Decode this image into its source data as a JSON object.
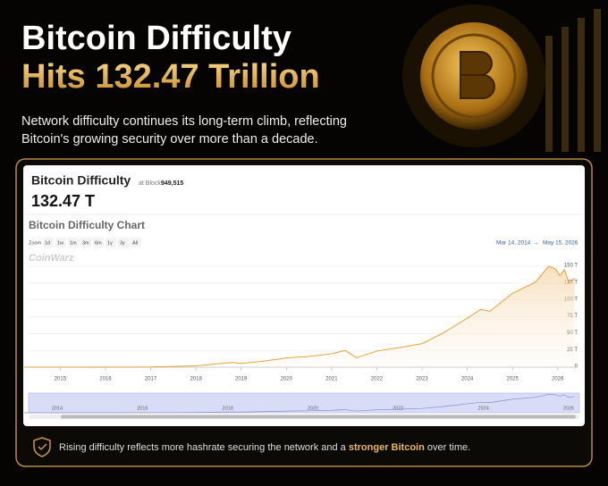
{
  "header": {
    "title_line1": "Bitcoin Difficulty",
    "title_line2": "Hits 132.47 Trillion",
    "subtitle_line1": "Network difficulty continues its long-term climb, reflecting",
    "subtitle_line2": "Bitcoin's growing security over more than a decade."
  },
  "card": {
    "title": "Bitcoin Difficulty",
    "block_label": "at Block",
    "block": "949,515",
    "current": "132.47 T"
  },
  "chart_data": {
    "type": "line",
    "title": "Bitcoin Difficulty Chart",
    "zoom_buttons": [
      "Zoom",
      "1d",
      "1w",
      "1m",
      "3m",
      "6m",
      "1y",
      "3y",
      "All"
    ],
    "range_start": "Mar 14, 2014",
    "range_arrow": "→",
    "range_end": "May 15, 2026",
    "watermark": "CoinWarz",
    "color": "#e3a33a",
    "x": [
      2014.2,
      2015,
      2016,
      2017,
      2018,
      2018.8,
      2019,
      2019.5,
      2020,
      2020.5,
      2021,
      2021.3,
      2021.55,
      2022,
      2022.5,
      2023,
      2023.5,
      2024,
      2024.3,
      2024.5,
      2025,
      2025.5,
      2025.8,
      2025.95,
      2026.05,
      2026.15,
      2026.25,
      2026.37
    ],
    "values": [
      0.006,
      0.04,
      0.1,
      0.3,
      2,
      7,
      5.6,
      9,
      13.8,
      16,
      20,
      25,
      14,
      24,
      29,
      35,
      52,
      73,
      86,
      83,
      110,
      126,
      150,
      146,
      136,
      145,
      125,
      132.47
    ],
    "xlim": [
      2014.3,
      2026.4
    ],
    "xticks": [
      2015,
      2016,
      2017,
      2018,
      2019,
      2020,
      2021,
      2022,
      2023,
      2024,
      2025,
      2026
    ],
    "ylim": [
      0,
      160
    ],
    "yticks": [
      0,
      {
        "value": 25,
        "label": "25 T"
      },
      {
        "value": 50,
        "label": "50 T"
      },
      {
        "value": 75,
        "label": "75 T"
      },
      {
        "value": 100,
        "label": "100 T"
      },
      {
        "value": 125,
        "label": "125 T"
      },
      {
        "value": 150,
        "label": "150 T"
      }
    ],
    "grid": true,
    "navigator_ticks": [
      2014,
      2016,
      2018,
      2020,
      2022,
      2024,
      2026
    ]
  },
  "footer": {
    "text_start": "Rising difficulty reflects more hashrate securing the network and a ",
    "text_bold": "stronger Bitcoin",
    "text_end": " over time."
  }
}
